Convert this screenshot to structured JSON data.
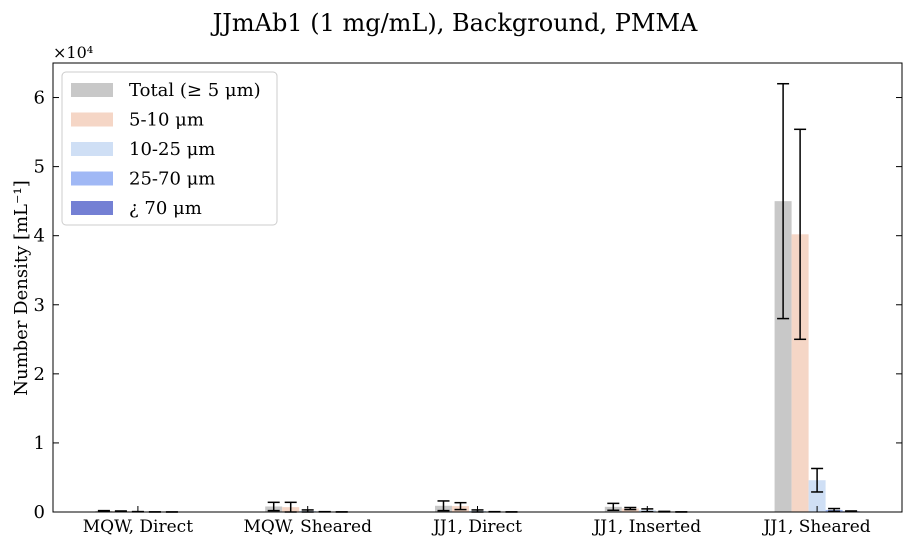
{
  "chart_data": {
    "type": "bar",
    "title": "JJmAb1 (1 mg/mL), Background, PMMA",
    "xlabel": "",
    "ylabel": "Number Density [mL⁻¹]",
    "y_multiplier_label": "×10⁴",
    "ylim": [
      0,
      65000
    ],
    "y_ticks": [
      0,
      10000,
      20000,
      30000,
      40000,
      50000,
      60000
    ],
    "y_tick_labels": [
      "0",
      "1",
      "2",
      "3",
      "4",
      "5",
      "6"
    ],
    "categories": [
      "MQW, Direct",
      "MQW, Sheared",
      "JJ1, Direct",
      "JJ1, Inserted",
      "JJ1, Sheared"
    ],
    "legend_position": "top-left",
    "grid": false,
    "series": [
      {
        "name": "Total (≥ 5 μm)",
        "color": "#c8c8c8",
        "values": [
          150,
          800,
          900,
          750,
          45000
        ],
        "errors": [
          50,
          600,
          700,
          500,
          17000
        ]
      },
      {
        "name": "5-10 μm",
        "color": "#f5d6c6",
        "values": [
          100,
          700,
          850,
          500,
          40200
        ],
        "errors": [
          50,
          700,
          500,
          150,
          15200
        ]
      },
      {
        "name": "10-25 μm",
        "color": "#cfdff5",
        "values": [
          40,
          150,
          150,
          250,
          4600
        ],
        "errors": [
          20,
          150,
          150,
          200,
          1700
        ]
      },
      {
        "name": "25-70 μm",
        "color": "#a0b8f5",
        "values": [
          10,
          30,
          30,
          50,
          300
        ],
        "errors": [
          5,
          20,
          20,
          40,
          200
        ]
      },
      {
        "name": "¿ 70 μm",
        "color": "#7480d4",
        "values": [
          5,
          10,
          10,
          10,
          100
        ],
        "errors": [
          5,
          10,
          10,
          10,
          50
        ]
      }
    ]
  }
}
